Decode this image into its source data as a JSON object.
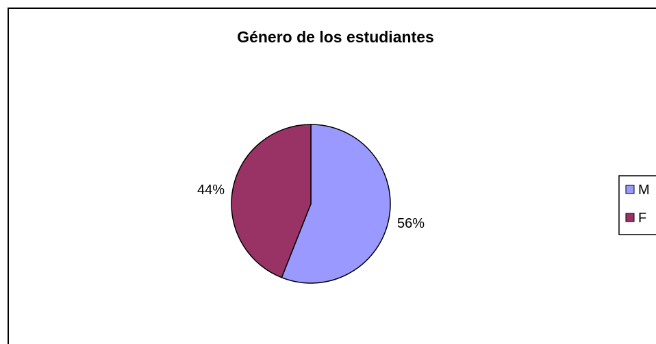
{
  "chart_data": {
    "type": "pie",
    "title": "Género de los estudiantes",
    "categories": [
      "M",
      "F"
    ],
    "values": [
      56,
      44
    ],
    "data_labels": [
      "56%",
      "44%"
    ],
    "colors": [
      "#9999ff",
      "#993366"
    ],
    "legend_position": "right",
    "start_angle_deg": 0,
    "direction": "clockwise"
  }
}
